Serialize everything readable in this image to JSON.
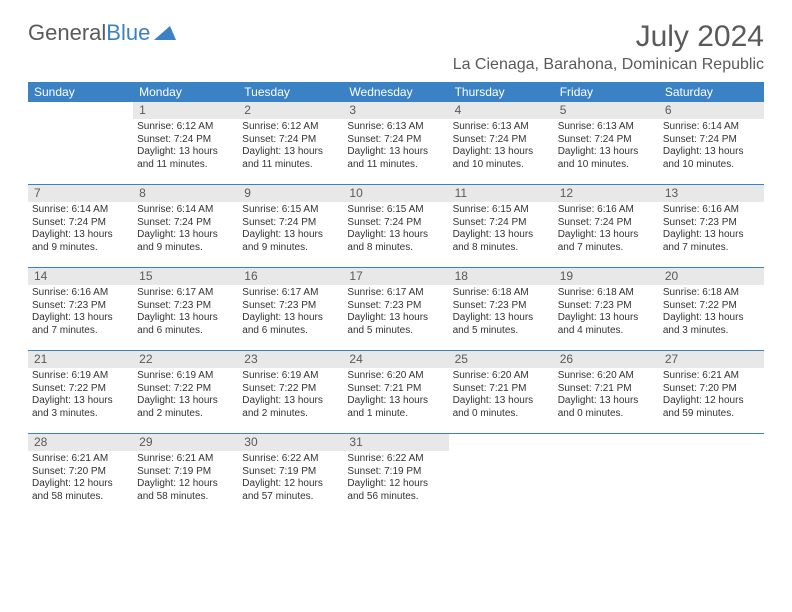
{
  "logo": {
    "word1": "General",
    "word2": "Blue"
  },
  "title": "July 2024",
  "location": "La Cienaga, Barahona, Dominican Republic",
  "colors": {
    "header_bg": "#3b82c4",
    "header_text": "#ffffff",
    "daynum_bg": "#e8e8e8",
    "text": "#333333",
    "title_text": "#5a5a5a"
  },
  "day_names": [
    "Sunday",
    "Monday",
    "Tuesday",
    "Wednesday",
    "Thursday",
    "Friday",
    "Saturday"
  ],
  "weeks": [
    [
      null,
      {
        "n": "1",
        "sr": "6:12 AM",
        "ss": "7:24 PM",
        "dl": "13 hours and 11 minutes."
      },
      {
        "n": "2",
        "sr": "6:12 AM",
        "ss": "7:24 PM",
        "dl": "13 hours and 11 minutes."
      },
      {
        "n": "3",
        "sr": "6:13 AM",
        "ss": "7:24 PM",
        "dl": "13 hours and 11 minutes."
      },
      {
        "n": "4",
        "sr": "6:13 AM",
        "ss": "7:24 PM",
        "dl": "13 hours and 10 minutes."
      },
      {
        "n": "5",
        "sr": "6:13 AM",
        "ss": "7:24 PM",
        "dl": "13 hours and 10 minutes."
      },
      {
        "n": "6",
        "sr": "6:14 AM",
        "ss": "7:24 PM",
        "dl": "13 hours and 10 minutes."
      }
    ],
    [
      {
        "n": "7",
        "sr": "6:14 AM",
        "ss": "7:24 PM",
        "dl": "13 hours and 9 minutes."
      },
      {
        "n": "8",
        "sr": "6:14 AM",
        "ss": "7:24 PM",
        "dl": "13 hours and 9 minutes."
      },
      {
        "n": "9",
        "sr": "6:15 AM",
        "ss": "7:24 PM",
        "dl": "13 hours and 9 minutes."
      },
      {
        "n": "10",
        "sr": "6:15 AM",
        "ss": "7:24 PM",
        "dl": "13 hours and 8 minutes."
      },
      {
        "n": "11",
        "sr": "6:15 AM",
        "ss": "7:24 PM",
        "dl": "13 hours and 8 minutes."
      },
      {
        "n": "12",
        "sr": "6:16 AM",
        "ss": "7:24 PM",
        "dl": "13 hours and 7 minutes."
      },
      {
        "n": "13",
        "sr": "6:16 AM",
        "ss": "7:23 PM",
        "dl": "13 hours and 7 minutes."
      }
    ],
    [
      {
        "n": "14",
        "sr": "6:16 AM",
        "ss": "7:23 PM",
        "dl": "13 hours and 7 minutes."
      },
      {
        "n": "15",
        "sr": "6:17 AM",
        "ss": "7:23 PM",
        "dl": "13 hours and 6 minutes."
      },
      {
        "n": "16",
        "sr": "6:17 AM",
        "ss": "7:23 PM",
        "dl": "13 hours and 6 minutes."
      },
      {
        "n": "17",
        "sr": "6:17 AM",
        "ss": "7:23 PM",
        "dl": "13 hours and 5 minutes."
      },
      {
        "n": "18",
        "sr": "6:18 AM",
        "ss": "7:23 PM",
        "dl": "13 hours and 5 minutes."
      },
      {
        "n": "19",
        "sr": "6:18 AM",
        "ss": "7:23 PM",
        "dl": "13 hours and 4 minutes."
      },
      {
        "n": "20",
        "sr": "6:18 AM",
        "ss": "7:22 PM",
        "dl": "13 hours and 3 minutes."
      }
    ],
    [
      {
        "n": "21",
        "sr": "6:19 AM",
        "ss": "7:22 PM",
        "dl": "13 hours and 3 minutes."
      },
      {
        "n": "22",
        "sr": "6:19 AM",
        "ss": "7:22 PM",
        "dl": "13 hours and 2 minutes."
      },
      {
        "n": "23",
        "sr": "6:19 AM",
        "ss": "7:22 PM",
        "dl": "13 hours and 2 minutes."
      },
      {
        "n": "24",
        "sr": "6:20 AM",
        "ss": "7:21 PM",
        "dl": "13 hours and 1 minute."
      },
      {
        "n": "25",
        "sr": "6:20 AM",
        "ss": "7:21 PM",
        "dl": "13 hours and 0 minutes."
      },
      {
        "n": "26",
        "sr": "6:20 AM",
        "ss": "7:21 PM",
        "dl": "13 hours and 0 minutes."
      },
      {
        "n": "27",
        "sr": "6:21 AM",
        "ss": "7:20 PM",
        "dl": "12 hours and 59 minutes."
      }
    ],
    [
      {
        "n": "28",
        "sr": "6:21 AM",
        "ss": "7:20 PM",
        "dl": "12 hours and 58 minutes."
      },
      {
        "n": "29",
        "sr": "6:21 AM",
        "ss": "7:19 PM",
        "dl": "12 hours and 58 minutes."
      },
      {
        "n": "30",
        "sr": "6:22 AM",
        "ss": "7:19 PM",
        "dl": "12 hours and 57 minutes."
      },
      {
        "n": "31",
        "sr": "6:22 AM",
        "ss": "7:19 PM",
        "dl": "12 hours and 56 minutes."
      },
      null,
      null,
      null
    ]
  ],
  "labels": {
    "sunrise_prefix": "Sunrise: ",
    "sunset_prefix": "Sunset: ",
    "daylight_prefix": "Daylight: "
  }
}
